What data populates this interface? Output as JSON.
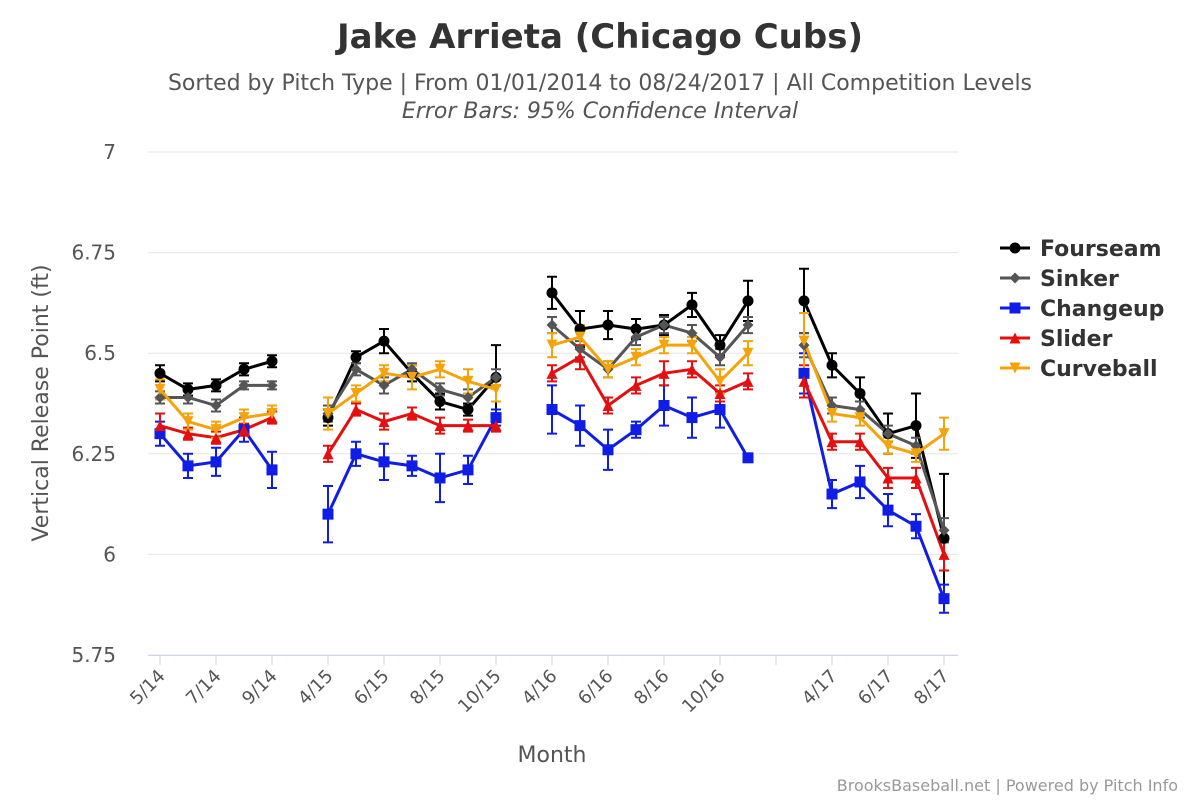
{
  "chart_data": {
    "type": "line",
    "title": "Jake Arrieta (Chicago Cubs)",
    "subtitle": "Sorted by Pitch Type | From 01/01/2014 to 08/24/2017 | All Competition Levels",
    "annotation": "Error Bars: 95% Confidence Interval",
    "credits": "BrooksBaseball.net | Powered by Pitch Info",
    "xlabel": "Month",
    "ylabel": "Vertical Release Point (ft)",
    "categories": [
      "5/14",
      null,
      "7/14",
      null,
      "9/14",
      null,
      "4/15",
      null,
      "6/15",
      null,
      "8/15",
      null,
      "10/15",
      null,
      "4/16",
      null,
      "6/16",
      null,
      "8/16",
      null,
      "10/16",
      null,
      null,
      null,
      "4/17",
      null,
      "6/17",
      null,
      "8/17"
    ],
    "ylim": [
      5.75,
      7
    ],
    "yticks": [
      5.75,
      6,
      6.25,
      6.5,
      6.75,
      7
    ],
    "grid": true,
    "legend": "right",
    "series": [
      {
        "name": "Fourseam",
        "color": "#000000",
        "marker": "circle",
        "values": [
          6.45,
          6.41,
          6.42,
          6.46,
          6.48,
          null,
          6.34,
          6.49,
          6.53,
          6.45,
          6.38,
          6.36,
          6.44,
          null,
          6.65,
          6.56,
          6.57,
          6.56,
          6.57,
          6.62,
          6.52,
          6.63,
          null,
          6.63,
          6.47,
          6.4,
          6.3,
          6.32,
          6.04
        ],
        "errors": [
          0.02,
          0.015,
          0.015,
          0.015,
          0.015,
          null,
          0.02,
          0.015,
          0.03,
          0.02,
          0.02,
          0.015,
          0.08,
          null,
          0.04,
          0.045,
          0.035,
          0.025,
          0.025,
          0.03,
          0.025,
          0.05,
          null,
          0.08,
          0.03,
          0.04,
          0.05,
          0.08,
          0.16
        ]
      },
      {
        "name": "Sinker",
        "color": "#555555",
        "marker": "diamond",
        "values": [
          6.39,
          6.39,
          6.37,
          6.42,
          6.42,
          null,
          6.35,
          6.46,
          6.42,
          6.46,
          6.41,
          6.39,
          6.44,
          null,
          6.57,
          6.51,
          6.46,
          6.54,
          6.57,
          6.55,
          6.49,
          6.57,
          null,
          6.52,
          6.37,
          6.36,
          6.3,
          6.27,
          6.06
        ],
        "errors": [
          0.015,
          0.015,
          0.015,
          0.01,
          0.01,
          null,
          0.02,
          0.015,
          0.02,
          0.015,
          0.015,
          0.02,
          0.02,
          null,
          0.02,
          0.02,
          0.02,
          0.02,
          0.02,
          0.02,
          0.02,
          0.02,
          null,
          0.03,
          0.02,
          0.02,
          0.02,
          0.02,
          0.03
        ]
      },
      {
        "name": "Changeup",
        "color": "#0f1de6",
        "marker": "square",
        "values": [
          6.3,
          6.22,
          6.23,
          6.31,
          6.21,
          null,
          6.1,
          6.25,
          6.23,
          6.22,
          6.19,
          6.21,
          6.34,
          null,
          6.36,
          6.32,
          6.26,
          6.31,
          6.37,
          6.34,
          6.36,
          6.24,
          null,
          6.45,
          6.15,
          6.18,
          6.11,
          6.07,
          5.89
        ],
        "errors": [
          0.03,
          0.03,
          0.035,
          0.03,
          0.045,
          null,
          0.07,
          0.03,
          0.045,
          0.025,
          0.06,
          0.035,
          0.02,
          null,
          0.06,
          0.05,
          0.05,
          0.02,
          0.05,
          0.05,
          0.045,
          0.01,
          null,
          0.05,
          0.035,
          0.04,
          0.04,
          0.03,
          0.035
        ]
      },
      {
        "name": "Slider",
        "color": "#e60f0f",
        "marker": "triangle",
        "values": [
          6.32,
          6.3,
          6.29,
          6.31,
          6.34,
          null,
          6.25,
          6.36,
          6.33,
          6.35,
          6.32,
          6.32,
          6.32,
          null,
          6.45,
          6.49,
          6.37,
          6.42,
          6.45,
          6.46,
          6.4,
          6.43,
          null,
          6.43,
          6.28,
          6.28,
          6.19,
          6.19,
          6.0
        ],
        "errors": [
          0.03,
          0.015,
          0.015,
          0.015,
          0.015,
          null,
          0.02,
          0.015,
          0.02,
          0.015,
          0.02,
          0.015,
          0.015,
          null,
          0.02,
          0.03,
          0.02,
          0.02,
          0.03,
          0.02,
          0.02,
          0.02,
          null,
          0.04,
          0.02,
          0.02,
          0.025,
          0.025,
          0.04
        ]
      },
      {
        "name": "Curveball",
        "color": "#f5a30a",
        "marker": "triangle-down",
        "values": [
          6.41,
          6.33,
          6.31,
          6.34,
          6.35,
          null,
          6.35,
          6.4,
          6.45,
          6.44,
          6.46,
          6.43,
          6.41,
          null,
          6.52,
          6.54,
          6.46,
          6.49,
          6.52,
          6.52,
          6.43,
          6.5,
          null,
          6.53,
          6.35,
          6.34,
          6.27,
          6.25,
          6.3
        ],
        "errors": [
          0.025,
          0.02,
          0.02,
          0.02,
          0.02,
          null,
          0.04,
          0.02,
          0.02,
          0.03,
          0.02,
          0.03,
          0.03,
          null,
          0.03,
          0.03,
          0.02,
          0.02,
          0.02,
          0.02,
          0.03,
          0.03,
          null,
          0.07,
          0.02,
          0.02,
          0.02,
          0.02,
          0.04
        ]
      }
    ]
  }
}
